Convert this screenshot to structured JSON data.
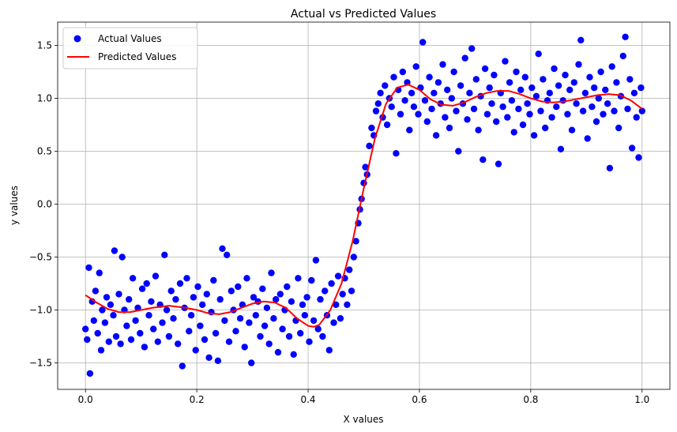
{
  "chart_data": {
    "type": "scatter",
    "title": "Actual vs Predicted Values",
    "xlabel": "X values",
    "ylabel": "y values",
    "xlim": [
      -0.05,
      1.05
    ],
    "ylim": [
      -1.75,
      1.72
    ],
    "x_ticks": [
      0.0,
      0.2,
      0.4,
      0.6,
      0.8,
      1.0
    ],
    "x_tick_labels": [
      "0.0",
      "0.2",
      "0.4",
      "0.6",
      "0.8",
      "1.0"
    ],
    "y_ticks": [
      -1.5,
      -1.0,
      -0.5,
      0.0,
      0.5,
      1.0,
      1.5
    ],
    "y_tick_labels": [
      "−1.5",
      "−1.0",
      "−0.5",
      "0.0",
      "0.5",
      "1.0",
      "1.5"
    ],
    "grid": true,
    "legend_position": "top-left",
    "series": [
      {
        "name": "Actual Values",
        "kind": "scatter",
        "color": "#0000ff",
        "points": [
          [
            0.0,
            -1.18
          ],
          [
            0.003,
            -1.28
          ],
          [
            0.006,
            -0.6
          ],
          [
            0.008,
            -1.6
          ],
          [
            0.012,
            -0.92
          ],
          [
            0.015,
            -1.1
          ],
          [
            0.018,
            -0.82
          ],
          [
            0.022,
            -1.22
          ],
          [
            0.025,
            -0.65
          ],
          [
            0.028,
            -1.38
          ],
          [
            0.03,
            -1.0
          ],
          [
            0.035,
            -1.12
          ],
          [
            0.038,
            -0.88
          ],
          [
            0.042,
            -1.3
          ],
          [
            0.045,
            -0.95
          ],
          [
            0.05,
            -1.05
          ],
          [
            0.052,
            -0.44
          ],
          [
            0.055,
            -1.25
          ],
          [
            0.06,
            -0.85
          ],
          [
            0.063,
            -1.32
          ],
          [
            0.066,
            -0.5
          ],
          [
            0.07,
            -1.0
          ],
          [
            0.074,
            -1.15
          ],
          [
            0.078,
            -0.9
          ],
          [
            0.082,
            -1.28
          ],
          [
            0.085,
            -0.7
          ],
          [
            0.09,
            -1.1
          ],
          [
            0.094,
            -0.98
          ],
          [
            0.098,
            -1.22
          ],
          [
            0.102,
            -0.8
          ],
          [
            0.106,
            -1.35
          ],
          [
            0.11,
            -0.75
          ],
          [
            0.114,
            -1.05
          ],
          [
            0.118,
            -0.92
          ],
          [
            0.122,
            -1.18
          ],
          [
            0.126,
            -0.68
          ],
          [
            0.13,
            -1.3
          ],
          [
            0.134,
            -0.95
          ],
          [
            0.138,
            -1.12
          ],
          [
            0.142,
            -0.48
          ],
          [
            0.146,
            -1.0
          ],
          [
            0.15,
            -1.25
          ],
          [
            0.154,
            -0.82
          ],
          [
            0.158,
            -1.08
          ],
          [
            0.162,
            -0.9
          ],
          [
            0.166,
            -1.32
          ],
          [
            0.17,
            -0.75
          ],
          [
            0.174,
            -1.53
          ],
          [
            0.178,
            -0.98
          ],
          [
            0.182,
            -0.7
          ],
          [
            0.186,
            -1.2
          ],
          [
            0.19,
            -1.05
          ],
          [
            0.194,
            -0.88
          ],
          [
            0.198,
            -1.38
          ],
          [
            0.202,
            -0.78
          ],
          [
            0.206,
            -1.15
          ],
          [
            0.21,
            -0.95
          ],
          [
            0.214,
            -1.28
          ],
          [
            0.218,
            -0.85
          ],
          [
            0.222,
            -1.45
          ],
          [
            0.226,
            -1.02
          ],
          [
            0.23,
            -0.72
          ],
          [
            0.234,
            -1.22
          ],
          [
            0.238,
            -1.48
          ],
          [
            0.242,
            -0.9
          ],
          [
            0.246,
            -0.42
          ],
          [
            0.25,
            -1.1
          ],
          [
            0.254,
            -0.48
          ],
          [
            0.258,
            -1.3
          ],
          [
            0.262,
            -0.82
          ],
          [
            0.266,
            -1.0
          ],
          [
            0.27,
            -1.2
          ],
          [
            0.274,
            -0.78
          ],
          [
            0.278,
            -1.08
          ],
          [
            0.282,
            -0.95
          ],
          [
            0.286,
            -1.35
          ],
          [
            0.29,
            -0.7
          ],
          [
            0.294,
            -1.12
          ],
          [
            0.298,
            -1.5
          ],
          [
            0.302,
            -0.88
          ],
          [
            0.306,
            -1.05
          ],
          [
            0.31,
            -0.92
          ],
          [
            0.314,
            -1.25
          ],
          [
            0.318,
            -0.8
          ],
          [
            0.322,
            -1.15
          ],
          [
            0.326,
            -0.98
          ],
          [
            0.33,
            -1.32
          ],
          [
            0.334,
            -0.65
          ],
          [
            0.338,
            -1.08
          ],
          [
            0.342,
            -0.9
          ],
          [
            0.346,
            -1.4
          ],
          [
            0.35,
            -0.85
          ],
          [
            0.354,
            -1.18
          ],
          [
            0.358,
            -1.0
          ],
          [
            0.362,
            -0.78
          ],
          [
            0.366,
            -1.25
          ],
          [
            0.37,
            -0.92
          ],
          [
            0.374,
            -1.42
          ],
          [
            0.378,
            -1.1
          ],
          [
            0.382,
            -0.7
          ],
          [
            0.386,
            -1.22
          ],
          [
            0.39,
            -0.95
          ],
          [
            0.394,
            -1.05
          ],
          [
            0.398,
            -0.88
          ],
          [
            0.402,
            -1.3
          ],
          [
            0.406,
            -0.72
          ],
          [
            0.41,
            -1.1
          ],
          [
            0.414,
            -0.53
          ],
          [
            0.418,
            -1.18
          ],
          [
            0.422,
            -0.9
          ],
          [
            0.426,
            -1.25
          ],
          [
            0.43,
            -0.82
          ],
          [
            0.434,
            -1.05
          ],
          [
            0.438,
            -1.38
          ],
          [
            0.442,
            -0.75
          ],
          [
            0.446,
            -1.12
          ],
          [
            0.45,
            -0.95
          ],
          [
            0.454,
            -0.68
          ],
          [
            0.458,
            -1.08
          ],
          [
            0.462,
            -0.85
          ],
          [
            0.466,
            -0.7
          ],
          [
            0.47,
            -0.95
          ],
          [
            0.474,
            -0.62
          ],
          [
            0.478,
            -0.82
          ],
          [
            0.482,
            -0.5
          ],
          [
            0.486,
            -0.35
          ],
          [
            0.49,
            -0.18
          ],
          [
            0.493,
            -0.05
          ],
          [
            0.496,
            0.05
          ],
          [
            0.5,
            0.2
          ],
          [
            0.503,
            0.35
          ],
          [
            0.506,
            0.28
          ],
          [
            0.51,
            0.55
          ],
          [
            0.514,
            0.72
          ],
          [
            0.518,
            0.65
          ],
          [
            0.522,
            0.88
          ],
          [
            0.526,
            0.95
          ],
          [
            0.53,
            1.05
          ],
          [
            0.534,
            0.82
          ],
          [
            0.538,
            1.12
          ],
          [
            0.542,
            0.75
          ],
          [
            0.546,
            1.0
          ],
          [
            0.55,
            0.92
          ],
          [
            0.554,
            1.2
          ],
          [
            0.558,
            0.48
          ],
          [
            0.562,
            1.08
          ],
          [
            0.566,
            0.85
          ],
          [
            0.57,
            1.25
          ],
          [
            0.574,
            0.98
          ],
          [
            0.578,
            1.15
          ],
          [
            0.582,
            0.7
          ],
          [
            0.586,
            1.05
          ],
          [
            0.59,
            0.92
          ],
          [
            0.594,
            1.3
          ],
          [
            0.598,
            0.85
          ],
          [
            0.602,
            1.1
          ],
          [
            0.606,
            1.53
          ],
          [
            0.61,
            0.98
          ],
          [
            0.614,
            0.78
          ],
          [
            0.618,
            1.2
          ],
          [
            0.622,
            0.9
          ],
          [
            0.626,
            1.05
          ],
          [
            0.63,
            0.65
          ],
          [
            0.634,
            1.15
          ],
          [
            0.638,
            0.95
          ],
          [
            0.642,
            1.32
          ],
          [
            0.646,
            0.82
          ],
          [
            0.65,
            1.08
          ],
          [
            0.654,
            0.72
          ],
          [
            0.658,
            1.0
          ],
          [
            0.662,
            1.25
          ],
          [
            0.666,
            0.88
          ],
          [
            0.67,
            0.5
          ],
          [
            0.674,
            1.12
          ],
          [
            0.678,
            0.95
          ],
          [
            0.682,
            1.38
          ],
          [
            0.686,
            0.8
          ],
          [
            0.69,
            1.05
          ],
          [
            0.694,
            1.47
          ],
          [
            0.698,
            0.9
          ],
          [
            0.702,
            1.18
          ],
          [
            0.706,
            0.7
          ],
          [
            0.71,
            1.02
          ],
          [
            0.714,
            0.42
          ],
          [
            0.718,
            1.28
          ],
          [
            0.722,
            0.85
          ],
          [
            0.726,
            1.1
          ],
          [
            0.73,
            0.95
          ],
          [
            0.734,
            1.22
          ],
          [
            0.738,
            0.78
          ],
          [
            0.742,
            0.38
          ],
          [
            0.746,
            1.05
          ],
          [
            0.75,
            0.92
          ],
          [
            0.754,
            1.35
          ],
          [
            0.758,
            0.82
          ],
          [
            0.762,
            1.15
          ],
          [
            0.766,
            0.98
          ],
          [
            0.77,
            0.68
          ],
          [
            0.774,
            1.25
          ],
          [
            0.778,
            0.9
          ],
          [
            0.782,
            1.08
          ],
          [
            0.786,
            0.75
          ],
          [
            0.79,
            1.2
          ],
          [
            0.794,
            0.95
          ],
          [
            0.798,
            0.85
          ],
          [
            0.802,
            1.1
          ],
          [
            0.806,
            0.65
          ],
          [
            0.81,
            1.02
          ],
          [
            0.814,
            1.42
          ],
          [
            0.818,
            0.88
          ],
          [
            0.822,
            1.18
          ],
          [
            0.826,
            0.72
          ],
          [
            0.83,
            0.98
          ],
          [
            0.834,
            1.05
          ],
          [
            0.838,
            0.82
          ],
          [
            0.842,
            1.28
          ],
          [
            0.846,
            0.92
          ],
          [
            0.85,
            1.12
          ],
          [
            0.854,
            0.52
          ],
          [
            0.858,
            0.98
          ],
          [
            0.862,
            1.22
          ],
          [
            0.866,
            0.85
          ],
          [
            0.87,
            1.08
          ],
          [
            0.874,
            0.7
          ],
          [
            0.878,
            1.15
          ],
          [
            0.882,
            0.95
          ],
          [
            0.886,
            1.32
          ],
          [
            0.89,
            1.55
          ],
          [
            0.894,
            0.88
          ],
          [
            0.898,
            1.05
          ],
          [
            0.902,
            0.62
          ],
          [
            0.906,
            1.2
          ],
          [
            0.91,
            0.92
          ],
          [
            0.914,
            1.1
          ],
          [
            0.918,
            0.78
          ],
          [
            0.922,
            1.0
          ],
          [
            0.926,
            1.25
          ],
          [
            0.93,
            0.85
          ],
          [
            0.934,
            1.08
          ],
          [
            0.938,
            0.95
          ],
          [
            0.942,
            0.34
          ],
          [
            0.946,
            1.3
          ],
          [
            0.95,
            0.88
          ],
          [
            0.954,
            1.15
          ],
          [
            0.958,
            0.72
          ],
          [
            0.962,
            1.02
          ],
          [
            0.966,
            1.4
          ],
          [
            0.97,
            1.58
          ],
          [
            0.974,
            0.9
          ],
          [
            0.978,
            1.18
          ],
          [
            0.982,
            0.53
          ],
          [
            0.986,
            1.05
          ],
          [
            0.99,
            0.82
          ],
          [
            0.994,
            0.44
          ],
          [
            0.998,
            1.1
          ],
          [
            1.0,
            0.88
          ]
        ]
      },
      {
        "name": "Predicted Values",
        "kind": "line",
        "color": "#ff0000",
        "x": [
          0.0,
          0.02,
          0.04,
          0.06,
          0.08,
          0.1,
          0.12,
          0.15,
          0.18,
          0.2,
          0.22,
          0.24,
          0.26,
          0.28,
          0.3,
          0.32,
          0.34,
          0.36,
          0.38,
          0.4,
          0.41,
          0.42,
          0.44,
          0.46,
          0.48,
          0.5,
          0.52,
          0.54,
          0.56,
          0.58,
          0.6,
          0.62,
          0.64,
          0.66,
          0.68,
          0.7,
          0.72,
          0.74,
          0.76,
          0.78,
          0.8,
          0.82,
          0.84,
          0.86,
          0.88,
          0.9,
          0.92,
          0.94,
          0.96,
          0.98,
          1.0
        ],
        "y": [
          -0.86,
          -0.93,
          -0.99,
          -1.02,
          -1.02,
          -1.0,
          -0.98,
          -0.96,
          -0.98,
          -1.0,
          -1.03,
          -1.04,
          -1.02,
          -0.98,
          -0.94,
          -0.92,
          -0.93,
          -0.98,
          -1.08,
          -1.15,
          -1.16,
          -1.14,
          -1.0,
          -0.75,
          -0.35,
          0.15,
          0.62,
          0.95,
          1.1,
          1.13,
          1.08,
          0.99,
          0.94,
          0.93,
          0.96,
          1.01,
          1.05,
          1.07,
          1.07,
          1.04,
          1.0,
          0.97,
          0.96,
          0.97,
          0.99,
          1.01,
          1.03,
          1.04,
          1.03,
          0.98,
          0.9
        ]
      }
    ]
  }
}
